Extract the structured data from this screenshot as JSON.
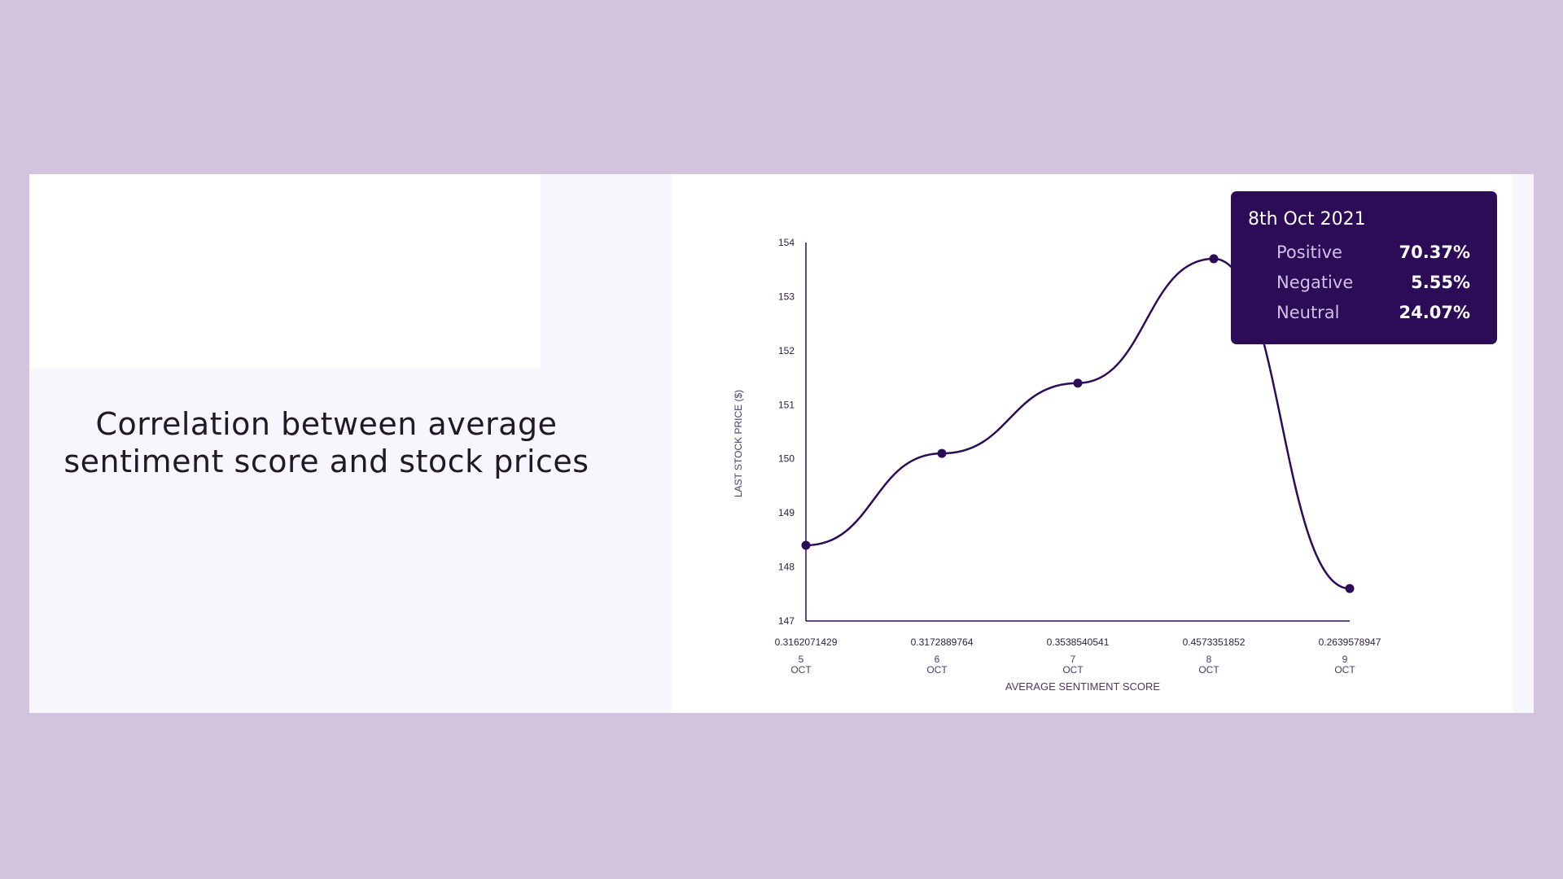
{
  "caption": {
    "line1": "Correlation between average",
    "line2": "sentiment score and stock prices"
  },
  "colors": {
    "page_background": "#d2c4de",
    "line": "#2c0b57",
    "tooltip_background": "#2c0b57"
  },
  "chart_data": {
    "type": "line",
    "title": "",
    "xlabel": "AVERAGE SENTIMENT SCORE",
    "ylabel": "LAST STOCK PRICE ($)",
    "ylim": [
      147,
      154
    ],
    "yticks": [
      147,
      148,
      149,
      150,
      151,
      152,
      153,
      154
    ],
    "x": [
      {
        "score": "0.3162071429",
        "day": "5",
        "month": "OCT"
      },
      {
        "score": "0.3172889764",
        "day": "6",
        "month": "OCT"
      },
      {
        "score": "0.3538540541",
        "day": "7",
        "month": "OCT"
      },
      {
        "score": "0.4573351852",
        "day": "8",
        "month": "OCT"
      },
      {
        "score": "0.2639578947",
        "day": "9",
        "month": "OCT"
      }
    ],
    "values": [
      148.4,
      150.1,
      151.4,
      153.7,
      147.6
    ],
    "smooth": true,
    "grid": false
  },
  "tooltip": {
    "date": "8th Oct 2021",
    "rows": [
      {
        "name": "Positive",
        "value": "70.37%"
      },
      {
        "name": "Negative",
        "value": "5.55%"
      },
      {
        "name": "Neutral",
        "value": "24.07%"
      }
    ]
  }
}
